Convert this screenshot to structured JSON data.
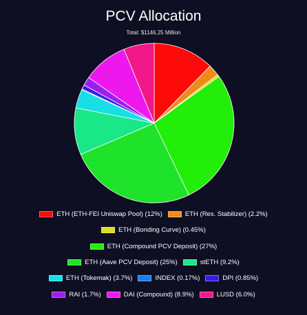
{
  "chart_data": {
    "type": "pie",
    "title": "PCV Allocation",
    "subtitle": "Total: $1146.25 Million",
    "start_angle_deg": 0,
    "direction": "clockwise",
    "legend_position": "bottom",
    "slices": [
      {
        "label": "ETH (ETH-FEI Uniswap Pool) (12%)",
        "value": 12,
        "color": "#ff0a0a"
      },
      {
        "label": "ETH (Res. Stabilizer) (2.2%)",
        "value": 2.2,
        "color": "#f08a1c"
      },
      {
        "label": "ETH (Bonding Curve) (0.45%)",
        "value": 0.45,
        "color": "#dede1a"
      },
      {
        "label": "ETH (Compound PCV Deposit) (27%)",
        "value": 27,
        "color": "#22ee0a"
      },
      {
        "label": "ETH (Aave PCV Deposit) (25%)",
        "value": 25,
        "color": "#1ee32a"
      },
      {
        "label": "stETH (9.2%)",
        "value": 9.2,
        "color": "#18e888"
      },
      {
        "label": "ETH (Tokemak) (3.7%)",
        "value": 3.7,
        "color": "#18dfe6"
      },
      {
        "label": "INDEX (0.17%)",
        "value": 0.17,
        "color": "#1c7ee8"
      },
      {
        "label": "DPI (0.85%)",
        "value": 0.85,
        "color": "#3a1aee"
      },
      {
        "label": "RAI (1.7%)",
        "value": 1.7,
        "color": "#9b1ef0"
      },
      {
        "label": "DAI (Compound) (8.9%)",
        "value": 8.9,
        "color": "#ee18ee"
      },
      {
        "label": "LUSD (6.0%)",
        "value": 6.0,
        "color": "#f01888"
      }
    ]
  },
  "legend_rows": [
    [
      0,
      1
    ],
    [
      2
    ],
    [
      3
    ],
    [
      4,
      5
    ],
    [
      6,
      7,
      8
    ],
    [
      9,
      10,
      11
    ]
  ]
}
